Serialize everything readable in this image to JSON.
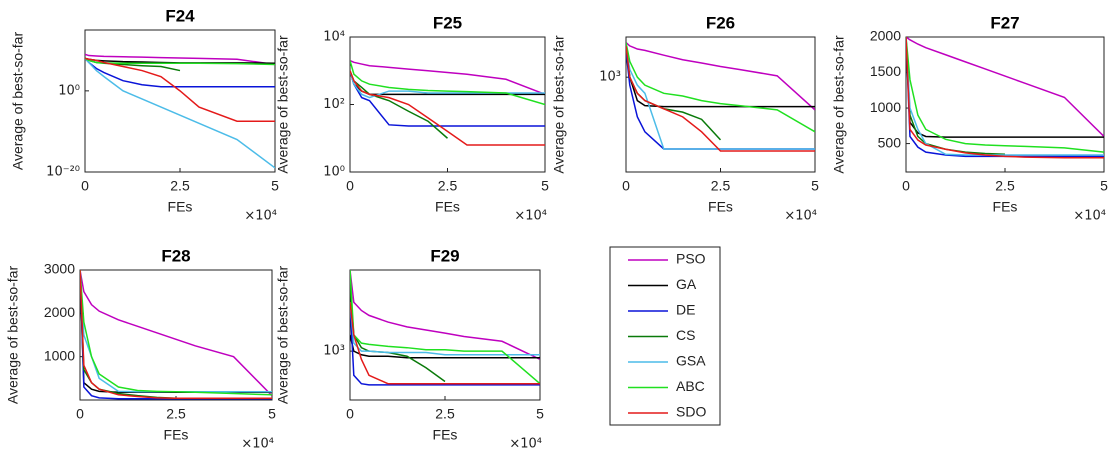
{
  "legend": [
    {
      "name": "PSO",
      "color": "#bf00bf"
    },
    {
      "name": "GA",
      "color": "#000000"
    },
    {
      "name": "DE",
      "color": "#0a14d8"
    },
    {
      "name": "CS",
      "color": "#0a7a0a"
    },
    {
      "name": "GSA",
      "color": "#4cbce8"
    },
    {
      "name": "ABC",
      "color": "#20e020"
    },
    {
      "name": "SDO",
      "color": "#e41a1a"
    }
  ],
  "chart_data": [
    {
      "type": "line",
      "title": "F24",
      "x_label": "FEs",
      "y_label": "Average of best-so-far",
      "x_multiplier": "×10⁴",
      "log_y": true,
      "x": [
        0,
        1000,
        3000,
        5000,
        10000,
        15000,
        20000,
        25000,
        30000,
        40000,
        50000
      ],
      "xlim": [
        0,
        50000
      ],
      "xticks": [
        0,
        {
          "value": 25000,
          "label": "2.5"
        },
        {
          "value": 50000,
          "label": "5"
        }
      ],
      "ylim": [
        1e-20,
        1000000000000000.0
      ],
      "yticks": [
        {
          "value": 1e-20,
          "label": "10⁻²⁰"
        },
        {
          "value": 1,
          "label": "10⁰"
        }
      ],
      "series": [
        {
          "values": [
            1000000000.0,
            500000000.0,
            400000000.0,
            320000000.0,
            250000000.0,
            200000000.0,
            160000000.0,
            130000000.0,
            100000000.0,
            63000000.0,
            3200000.0
          ]
        },
        {
          "values": [
            100000000.0,
            63000000.0,
            32000000.0,
            25000000.0,
            16000000.0,
            13000000.0,
            10000000.0,
            7900000.0,
            7900000.0,
            7900000.0,
            6300000.0
          ]
        },
        {
          "values": [
            100000000.0,
            10000000.0,
            320000.0,
            32000.0,
            320,
            32,
            10,
            10,
            10,
            10,
            10
          ]
        },
        {
          "values": [
            100000000.0,
            32000000.0,
            10000000.0,
            6300000.0,
            3200000.0,
            1600000.0,
            1000000.0,
            100000.0,
            null,
            null,
            null
          ]
        },
        {
          "values": [
            100000000.0,
            10000000.0,
            100000.0,
            3200,
            1,
            0.01,
            0.0001,
            1e-06,
            1e-08,
            1e-12,
            1e-19
          ]
        },
        {
          "values": [
            100000000.0,
            32000000.0,
            10000000.0,
            7900000.0,
            6300000.0,
            6300000.0,
            6300000.0,
            6300000.0,
            6300000.0,
            5000000.0,
            3200000.0
          ]
        },
        {
          "values": [
            100000000.0,
            63000000.0,
            32000000.0,
            10000000.0,
            1000000.0,
            100000.0,
            3200,
            1,
            0.0001,
            3.2e-08,
            3.2e-08
          ]
        }
      ]
    },
    {
      "type": "line",
      "title": "F25",
      "x_label": "FEs",
      "y_label": "Average of best-so-far",
      "x_multiplier": "×10⁴",
      "log_y": true,
      "x": [
        0,
        1000,
        3000,
        5000,
        10000,
        15000,
        20000,
        25000,
        30000,
        40000,
        50000
      ],
      "xlim": [
        0,
        50000
      ],
      "xticks": [
        0,
        {
          "value": 25000,
          "label": "2.5"
        },
        {
          "value": 50000,
          "label": "5"
        }
      ],
      "ylim": [
        1,
        10000
      ],
      "yticks": [
        {
          "value": 1,
          "label": "10⁰"
        },
        {
          "value": 100,
          "label": "10²"
        },
        {
          "value": 10000,
          "label": "10⁴"
        }
      ],
      "series": [
        {
          "values": [
            2000,
            1780,
            1580,
            1410,
            1260,
            1120,
            1000,
            890,
            790,
            560,
            200
          ]
        },
        {
          "values": [
            1000,
            400,
            250,
            200,
            200,
            200,
            200,
            200,
            200,
            200,
            200
          ]
        },
        {
          "values": [
            1000,
            400,
            160,
            130,
            25,
            23,
            23,
            23,
            23,
            23,
            23
          ]
        },
        {
          "values": [
            1000,
            500,
            320,
            200,
            130,
            63,
            32,
            10,
            null,
            null,
            null
          ]
        },
        {
          "values": [
            1000,
            400,
            200,
            160,
            250,
            250,
            220,
            220,
            220,
            220,
            220
          ]
        },
        {
          "values": [
            2000,
            790,
            500,
            400,
            320,
            280,
            260,
            250,
            240,
            220,
            100
          ]
        },
        {
          "values": [
            1000,
            500,
            250,
            200,
            160,
            100,
            40,
            16,
            6.3,
            6.3,
            6.3
          ]
        }
      ]
    },
    {
      "type": "line",
      "title": "F26",
      "x_label": "FEs",
      "y_label": "Average of best-so-far",
      "x_multiplier": "×10⁴",
      "log_y": true,
      "x": [
        0,
        1000,
        3000,
        5000,
        10000,
        15000,
        20000,
        25000,
        30000,
        40000,
        50000
      ],
      "xlim": [
        0,
        50000
      ],
      "xticks": [
        0,
        {
          "value": 25000,
          "label": "2.5"
        },
        {
          "value": 50000,
          "label": "5"
        }
      ],
      "ylim": [
        250,
        1800
      ],
      "yticks": [
        {
          "value": 1000,
          "label": "10³"
        }
      ],
      "series": [
        {
          "values": [
            1660,
            1580,
            1510,
            1480,
            1380,
            1290,
            1230,
            1170,
            1120,
            1020,
            620
          ]
        },
        {
          "values": [
            1580,
            1000,
            710,
            660,
            650,
            650,
            650,
            650,
            650,
            650,
            650
          ]
        },
        {
          "values": [
            1480,
            890,
            560,
            450,
            350,
            350,
            350,
            350,
            350,
            350,
            350
          ]
        },
        {
          "values": [
            1580,
            1000,
            790,
            710,
            630,
            600,
            540,
            400,
            null,
            null,
            null
          ]
        },
        {
          "values": [
            1580,
            1120,
            890,
            790,
            350,
            350,
            350,
            350,
            350,
            350,
            350
          ]
        },
        {
          "values": [
            1660,
            1260,
            1000,
            890,
            790,
            760,
            710,
            680,
            660,
            620,
            450
          ]
        },
        {
          "values": [
            1580,
            1000,
            790,
            710,
            630,
            560,
            450,
            340,
            340,
            340,
            340
          ]
        }
      ]
    },
    {
      "type": "line",
      "title": "F27",
      "x_label": "FEs",
      "y_label": "Average of best-so-far",
      "x_multiplier": "×10⁴",
      "log_y": false,
      "x": [
        0,
        1000,
        3000,
        5000,
        10000,
        15000,
        20000,
        25000,
        30000,
        40000,
        50000
      ],
      "xlim": [
        0,
        50000
      ],
      "xticks": [
        0,
        {
          "value": 25000,
          "label": "2.5"
        },
        {
          "value": 50000,
          "label": "5"
        }
      ],
      "ylim": [
        100,
        2000
      ],
      "yticks": [
        500,
        1000,
        1500,
        2000
      ],
      "series": [
        {
          "values": [
            2000,
            1960,
            1900,
            1850,
            1750,
            1650,
            1550,
            1450,
            1350,
            1150,
            600
          ]
        },
        {
          "values": [
            2000,
            800,
            650,
            600,
            590,
            590,
            590,
            590,
            590,
            590,
            590
          ]
        },
        {
          "values": [
            2000,
            600,
            450,
            380,
            340,
            320,
            320,
            320,
            320,
            320,
            320
          ]
        },
        {
          "values": [
            2000,
            900,
            600,
            500,
            420,
            380,
            360,
            350,
            null,
            null,
            null
          ]
        },
        {
          "values": [
            2000,
            1000,
            700,
            500,
            350,
            340,
            340,
            340,
            340,
            340,
            340
          ]
        },
        {
          "values": [
            2000,
            1400,
            900,
            700,
            560,
            500,
            480,
            470,
            460,
            440,
            380
          ]
        },
        {
          "values": [
            2000,
            700,
            550,
            480,
            420,
            370,
            340,
            320,
            310,
            300,
            300
          ]
        }
      ]
    },
    {
      "type": "line",
      "title": "F28",
      "x_label": "FEs",
      "y_label": "Average of best-so-far",
      "x_multiplier": "×10⁴",
      "log_y": false,
      "x": [
        0,
        1000,
        3000,
        5000,
        10000,
        15000,
        20000,
        25000,
        30000,
        40000,
        50000
      ],
      "xlim": [
        0,
        50000
      ],
      "xticks": [
        0,
        {
          "value": 25000,
          "label": "2.5"
        },
        {
          "value": 50000,
          "label": "5"
        }
      ],
      "ylim": [
        0,
        3000
      ],
      "yticks": [
        1000,
        2000,
        3000
      ],
      "series": [
        {
          "values": [
            3000,
            2500,
            2200,
            2050,
            1850,
            1700,
            1550,
            1400,
            1250,
            1000,
            100
          ]
        },
        {
          "values": [
            3000,
            400,
            250,
            200,
            180,
            180,
            180,
            180,
            180,
            180,
            180
          ]
        },
        {
          "values": [
            3000,
            300,
            100,
            50,
            30,
            30,
            30,
            30,
            30,
            30,
            30
          ]
        },
        {
          "values": [
            3000,
            700,
            400,
            250,
            150,
            100,
            60,
            40,
            null,
            null,
            null
          ]
        },
        {
          "values": [
            3000,
            1500,
            1000,
            500,
            200,
            190,
            190,
            190,
            190,
            190,
            190
          ]
        },
        {
          "values": [
            3000,
            1800,
            1000,
            600,
            300,
            220,
            200,
            190,
            180,
            150,
            120
          ]
        },
        {
          "values": [
            3000,
            800,
            400,
            250,
            120,
            80,
            50,
            40,
            40,
            40,
            40
          ]
        }
      ]
    },
    {
      "type": "line",
      "title": "F29",
      "x_label": "FEs",
      "y_label": "Average of best-so-far",
      "x_multiplier": "×10⁴",
      "log_y": true,
      "x": [
        0,
        1000,
        3000,
        5000,
        10000,
        15000,
        20000,
        25000,
        30000,
        40000,
        50000
      ],
      "xlim": [
        0,
        50000
      ],
      "xticks": [
        0,
        {
          "value": 25000,
          "label": "2.5"
        },
        {
          "value": 50000,
          "label": "5"
        }
      ],
      "ylim": [
        500,
        3160
      ],
      "yticks": [
        {
          "value": 1000,
          "label": "10³"
        }
      ],
      "series": [
        {
          "values": [
            3160,
            2000,
            1780,
            1660,
            1510,
            1410,
            1350,
            1290,
            1230,
            1150,
            890
          ]
        },
        {
          "values": [
            1260,
            1000,
            950,
            930,
            930,
            910,
            910,
            910,
            910,
            910,
            910
          ]
        },
        {
          "values": [
            2000,
            710,
            630,
            620,
            620,
            620,
            620,
            620,
            620,
            620,
            620
          ]
        },
        {
          "values": [
            2510,
            1260,
            1050,
            1000,
            980,
            930,
            790,
            650,
            null,
            null,
            null
          ]
        },
        {
          "values": [
            2000,
            1120,
            1000,
            1000,
            980,
            980,
            980,
            950,
            950,
            950,
            950
          ]
        },
        {
          "values": [
            3160,
            1260,
            1120,
            1100,
            1070,
            1050,
            1020,
            1020,
            1000,
            1000,
            630
          ]
        },
        {
          "values": [
            2000,
            1260,
            890,
            710,
            630,
            630,
            630,
            630,
            630,
            630,
            630
          ]
        }
      ]
    }
  ]
}
